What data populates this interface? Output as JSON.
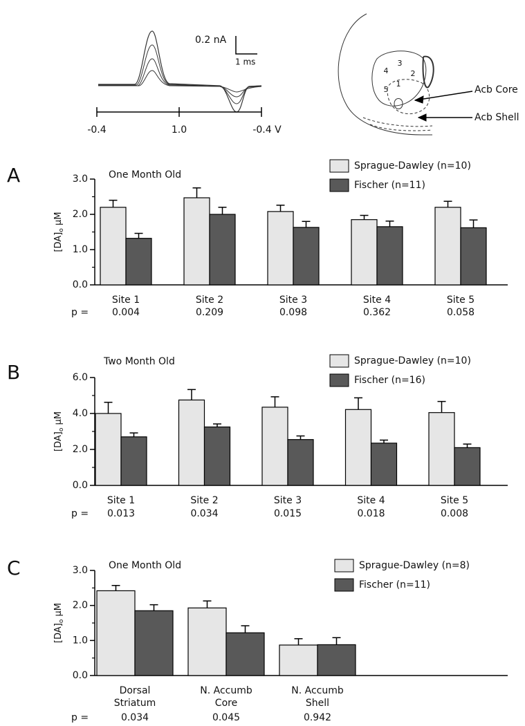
{
  "voltammogram": {
    "current_scale": "0.2 nA",
    "time_scale": "1 ms",
    "potentials": [
      "-0.4",
      "1.0",
      "-0.4 V"
    ]
  },
  "diagram": {
    "regions": [
      "1",
      "2",
      "3",
      "4",
      "5"
    ],
    "labels": [
      "Acb Core",
      "Acb Shell"
    ]
  },
  "chart_data": [
    {
      "type": "bar",
      "panel": "A",
      "title": "One Month Old",
      "ylabel": [
        "[DA]",
        "o",
        " µM"
      ],
      "categories": [
        [
          "Site 1"
        ],
        [
          "Site 2"
        ],
        [
          "Site 3"
        ],
        [
          "Site 4"
        ],
        [
          "Site 5"
        ]
      ],
      "series": [
        {
          "name": "Sprague-Dawley (n=10)",
          "color": "#e6e6e6",
          "values": [
            2.2,
            2.47,
            2.08,
            1.85,
            2.2
          ],
          "errors": [
            0.2,
            0.28,
            0.18,
            0.12,
            0.17
          ]
        },
        {
          "name": "Fischer (n=11)",
          "color": "#595959",
          "values": [
            1.32,
            2.0,
            1.63,
            1.65,
            1.62
          ],
          "errors": [
            0.14,
            0.2,
            0.17,
            0.16,
            0.22
          ]
        }
      ],
      "p_label": "p =",
      "p_values": [
        0.004,
        0.209,
        0.098,
        0.362,
        0.058
      ],
      "ylim": [
        0,
        3
      ],
      "yticks": [
        {
          "value": 0,
          "label": "0.0"
        },
        {
          "value": 1,
          "label": "1.0"
        },
        {
          "value": 2,
          "label": "2.0"
        },
        {
          "value": 3,
          "label": "3.0"
        }
      ],
      "minor_yticks": [
        0.5,
        1.5,
        2.5
      ]
    },
    {
      "type": "bar",
      "panel": "B",
      "title": "Two Month Old",
      "ylabel": [
        "[DA]",
        "o",
        " µM"
      ],
      "categories": [
        [
          "Site 1"
        ],
        [
          "Site 2"
        ],
        [
          "Site 3"
        ],
        [
          "Site 4"
        ],
        [
          "Site 5"
        ]
      ],
      "series": [
        {
          "name": "Sprague-Dawley (n=10)",
          "color": "#e6e6e6",
          "values": [
            4.0,
            4.75,
            4.35,
            4.22,
            4.05
          ],
          "errors": [
            0.62,
            0.58,
            0.58,
            0.65,
            0.62
          ]
        },
        {
          "name": "Fischer (n=16)",
          "color": "#595959",
          "values": [
            2.7,
            3.25,
            2.55,
            2.35,
            2.1
          ],
          "errors": [
            0.22,
            0.17,
            0.2,
            0.17,
            0.2
          ]
        }
      ],
      "p_label": "p =",
      "p_values": [
        0.013,
        0.034,
        0.015,
        0.018,
        0.008
      ],
      "ylim": [
        0,
        6
      ],
      "yticks": [
        {
          "value": 0,
          "label": "0.0"
        },
        {
          "value": 2,
          "label": "2.0"
        },
        {
          "value": 4,
          "label": "4.0"
        },
        {
          "value": 6,
          "label": "6.0"
        }
      ],
      "minor_yticks": [
        1,
        3,
        5
      ]
    },
    {
      "type": "bar",
      "panel": "C",
      "title": "One Month Old",
      "ylabel": [
        "[DA]",
        "o",
        " µM"
      ],
      "categories": [
        [
          "Dorsal",
          "Striatum"
        ],
        [
          "N. Accumb",
          "Core"
        ],
        [
          "N. Accumb",
          "Shell"
        ]
      ],
      "series": [
        {
          "name": "Sprague-Dawley (n=8)",
          "color": "#e6e6e6",
          "values": [
            2.42,
            1.93,
            0.87
          ],
          "errors": [
            0.15,
            0.2,
            0.18
          ]
        },
        {
          "name": "Fischer (n=11)",
          "color": "#595959",
          "values": [
            1.85,
            1.22,
            0.88
          ],
          "errors": [
            0.17,
            0.2,
            0.2
          ]
        }
      ],
      "p_label": "p =",
      "p_values": [
        0.034,
        0.045,
        0.942
      ],
      "ylim": [
        0,
        3
      ],
      "yticks": [
        {
          "value": 0,
          "label": "0.0"
        },
        {
          "value": 1,
          "label": "1.0"
        },
        {
          "value": 2,
          "label": "2.0"
        },
        {
          "value": 3,
          "label": "3.0"
        }
      ],
      "minor_yticks": [
        0.5,
        1.5,
        2.5
      ]
    }
  ]
}
